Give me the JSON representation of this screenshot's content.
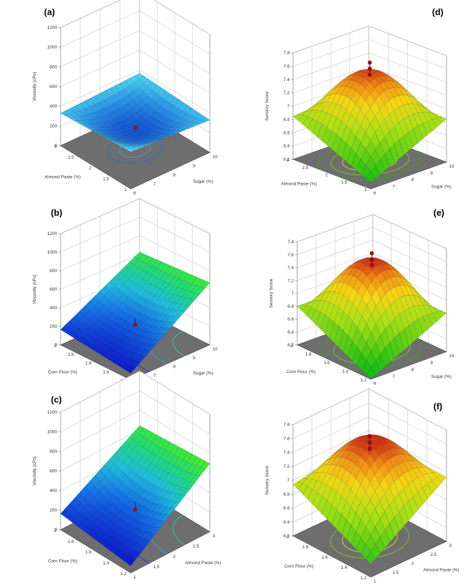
{
  "figure": {
    "panels": [
      {
        "label": "(a)",
        "kind": "viscosity",
        "chart_data": {
          "type": "surface",
          "zlabel": "Viscosity (cPs)",
          "zticks": [
            "0",
            "200",
            "400",
            "600",
            "800",
            "1000",
            "1200"
          ],
          "zlim": [
            0,
            1200
          ],
          "left_axis": {
            "label": "Almond Paste (%)",
            "ticks": [
              "1",
              "1.5",
              "2",
              "2.5",
              "3"
            ]
          },
          "right_axis": {
            "label": "Sugar (%)",
            "ticks": [
              "6",
              "7",
              "8",
              "9",
              "10"
            ]
          },
          "surface": {
            "c00": 330,
            "c10": 280,
            "c01": 280,
            "c11": 320,
            "center": 110
          },
          "colormap": "blue",
          "design_point_value": 160,
          "contour_colors": [
            "#3aa0d8",
            "#2c6fd0"
          ]
        }
      },
      {
        "label": "(b)",
        "kind": "viscosity",
        "chart_data": {
          "type": "surface",
          "zlabel": "Viscosity (cPs)",
          "zticks": [
            "0",
            "200",
            "400",
            "600",
            "800",
            "1000",
            "1200"
          ],
          "zlim": [
            0,
            1200
          ],
          "left_axis": {
            "label": "Corn Flour (%)",
            "ticks": [
              "1.2",
              "1.4",
              "1.6",
              "1.8",
              "2"
            ]
          },
          "right_axis": {
            "label": "Sugar (%)",
            "ticks": [
              "6",
              "7",
              "8",
              "9",
              "10"
            ]
          },
          "surface": {
            "c00": 0,
            "c10": 650,
            "c01": 100,
            "c11": 600,
            "center": 230
          },
          "colormap": "blue-green",
          "design_point_value": 160,
          "contour_colors": [
            "#28c8b0",
            "#3aa0d8",
            "#2040c0"
          ]
        }
      },
      {
        "label": "(c)",
        "kind": "viscosity",
        "chart_data": {
          "type": "surface",
          "zlabel": "Viscosity (cPs)",
          "zticks": [
            "0",
            "200",
            "400",
            "600",
            "800",
            "1000",
            "1200"
          ],
          "zlim": [
            0,
            1200
          ],
          "left_axis": {
            "label": "Corn Flour (%)",
            "ticks": [
              "1.2",
              "1.4",
              "1.6",
              "1.8",
              "2"
            ]
          },
          "right_axis": {
            "label": "Almond Paste (%)",
            "ticks": [
              "1",
              "1.5",
              "2",
              "2.5",
              "3"
            ]
          },
          "surface": {
            "c00": 0,
            "c10": 680,
            "c01": 100,
            "c11": 620,
            "center": 240
          },
          "colormap": "blue-green",
          "design_point_value": 160,
          "contour_colors": [
            "#28c8b0",
            "#3aa0d8",
            "#2040c0"
          ]
        }
      },
      {
        "label": "(d)",
        "kind": "sensory",
        "chart_data": {
          "type": "surface",
          "zlabel": "Sensory Score",
          "zticks": [
            "6.2",
            "6.4",
            "6.6",
            "6.8",
            "7",
            "7.2",
            "7.4",
            "7.6",
            "7.8"
          ],
          "zlim": [
            6.2,
            7.8
          ],
          "left_axis": {
            "label": "Almond Paste (%)",
            "ticks": [
              "1",
              "1.5",
              "2",
              "2.5",
              "3"
            ]
          },
          "right_axis": {
            "label": "Sugar (%)",
            "ticks": [
              "6",
              "7",
              "8",
              "9",
              "10"
            ]
          },
          "surface": {
            "c00": 6.2,
            "c10": 6.8,
            "c01": 6.8,
            "c11": 6.9,
            "center": 7.5
          },
          "colormap": "green-yellow-red",
          "design_points": [
            7.5,
            7.6,
            7.7
          ],
          "contour_colors": [
            "#e8c020",
            "#c8d020",
            "#80c020",
            "#40a020"
          ]
        }
      },
      {
        "label": "(e)",
        "kind": "sensory",
        "chart_data": {
          "type": "surface",
          "zlabel": "Sensory Score",
          "zticks": [
            "6.2",
            "6.4",
            "6.6",
            "6.8",
            "7",
            "7.2",
            "7.4",
            "7.6",
            "7.8"
          ],
          "zlim": [
            6.2,
            7.8
          ],
          "left_axis": {
            "label": "Corn Flour (%)",
            "ticks": [
              "1.2",
              "1.4",
              "1.6",
              "1.8",
              "2"
            ]
          },
          "right_axis": {
            "label": "Sugar (%)",
            "ticks": [
              "6",
              "7",
              "8",
              "9",
              "10"
            ]
          },
          "surface": {
            "c00": 6.1,
            "c10": 6.75,
            "c01": 6.75,
            "c11": 6.7,
            "center": 7.55
          },
          "colormap": "green-yellow-red",
          "design_points": [
            7.5,
            7.6,
            7.7
          ],
          "contour_colors": [
            "#e8c020",
            "#c8d020",
            "#80c020",
            "#40a020"
          ]
        }
      },
      {
        "label": "(f)",
        "kind": "sensory",
        "chart_data": {
          "type": "surface",
          "zlabel": "Sensory Score",
          "zticks": [
            "6.2",
            "6.4",
            "6.6",
            "6.8",
            "7",
            "7.2",
            "7.4",
            "7.6",
            "7.8"
          ],
          "zlim": [
            6.2,
            7.8
          ],
          "left_axis": {
            "label": "Corn Flour (%)",
            "ticks": [
              "1.2",
              "1.4",
              "1.6",
              "1.8",
              "2"
            ]
          },
          "right_axis": {
            "label": "Almond Paste (%)",
            "ticks": [
              "1",
              "1.5",
              "2",
              "2.5",
              "3"
            ]
          },
          "surface": {
            "c00": 6.3,
            "c10": 7.1,
            "c01": 6.9,
            "c11": 7.1,
            "center": 7.55
          },
          "colormap": "green-yellow-red",
          "design_points": [
            7.5,
            7.6,
            7.7
          ],
          "contour_colors": [
            "#e8c020",
            "#c8d020",
            "#80c020"
          ]
        }
      }
    ]
  }
}
